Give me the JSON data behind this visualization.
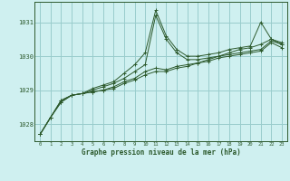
{
  "background_color": "#cff0f0",
  "grid_color": "#99cccc",
  "line_color": "#2d5a2d",
  "xlabel": "Graphe pression niveau de la mer (hPa)",
  "xlim": [
    -0.5,
    23.5
  ],
  "ylim": [
    1027.5,
    1031.6
  ],
  "yticks": [
    1028,
    1029,
    1030,
    1031
  ],
  "xticks": [
    0,
    1,
    2,
    3,
    4,
    5,
    6,
    7,
    8,
    9,
    10,
    11,
    12,
    13,
    14,
    15,
    16,
    17,
    18,
    19,
    20,
    21,
    22,
    23
  ],
  "series": [
    [
      1027.7,
      1028.2,
      1028.7,
      1028.85,
      1028.9,
      1029.05,
      1029.15,
      1029.25,
      1029.5,
      1029.75,
      1030.1,
      1031.35,
      1030.6,
      1030.2,
      1030.0,
      1030.0,
      1030.05,
      1030.1,
      1030.2,
      1030.25,
      1030.3,
      1031.0,
      1030.5,
      1030.4
    ],
    [
      1027.7,
      1028.2,
      1028.7,
      1028.85,
      1028.9,
      1029.0,
      1029.1,
      1029.2,
      1029.35,
      1029.55,
      1029.75,
      1031.2,
      1030.5,
      1030.1,
      1029.9,
      1029.9,
      1029.95,
      1030.0,
      1030.1,
      1030.2,
      1030.25,
      1030.35,
      1030.5,
      1030.35
    ],
    [
      1027.7,
      1028.2,
      1028.65,
      1028.85,
      1028.9,
      1028.95,
      1029.0,
      1029.1,
      1029.25,
      1029.35,
      1029.55,
      1029.65,
      1029.6,
      1029.7,
      1029.75,
      1029.8,
      1029.9,
      1030.0,
      1030.05,
      1030.1,
      1030.15,
      1030.2,
      1030.45,
      1030.35
    ],
    [
      1027.7,
      1028.2,
      1028.65,
      1028.85,
      1028.9,
      1028.95,
      1029.0,
      1029.05,
      1029.2,
      1029.3,
      1029.45,
      1029.55,
      1029.55,
      1029.65,
      1029.7,
      1029.8,
      1029.85,
      1029.95,
      1030.0,
      1030.05,
      1030.1,
      1030.15,
      1030.4,
      1030.25
    ]
  ]
}
